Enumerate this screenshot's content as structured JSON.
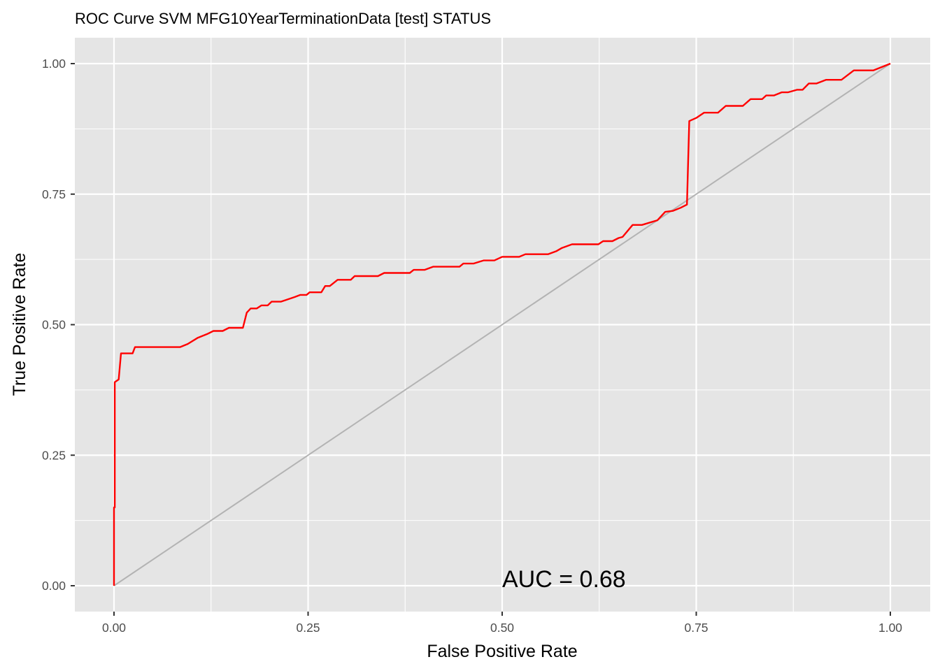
{
  "chart_data": {
    "type": "line",
    "title": "ROC Curve SVM MFG10YearTerminationData [test] STATUS",
    "xlabel": "False Positive Rate",
    "ylabel": "True Positive Rate",
    "xlim": [
      0,
      1
    ],
    "ylim": [
      0,
      1
    ],
    "x_ticks": [
      "0.00",
      "0.25",
      "0.50",
      "0.75",
      "1.00"
    ],
    "y_ticks": [
      "0.00",
      "0.25",
      "0.50",
      "0.75",
      "1.00"
    ],
    "grid": true,
    "legend": "none",
    "annotation": {
      "text": "AUC = 0.68",
      "x": 0.5,
      "y": 0.0
    },
    "colors": {
      "panel": "#e5e5e5",
      "grid": "#ffffff",
      "roc": "#ff0000",
      "diagonal": "#b3b3b3"
    },
    "series": [
      {
        "points": [
          [
            0.0,
            0.0
          ],
          [
            0.0,
            0.15
          ],
          [
            0.001,
            0.15
          ],
          [
            0.001,
            0.39
          ],
          [
            0.006,
            0.395
          ],
          [
            0.009,
            0.445
          ],
          [
            0.024,
            0.445
          ],
          [
            0.027,
            0.457
          ],
          [
            0.085,
            0.457
          ],
          [
            0.095,
            0.463
          ],
          [
            0.108,
            0.475
          ],
          [
            0.12,
            0.482
          ],
          [
            0.128,
            0.488
          ],
          [
            0.14,
            0.488
          ],
          [
            0.148,
            0.494
          ],
          [
            0.166,
            0.494
          ],
          [
            0.171,
            0.523
          ],
          [
            0.176,
            0.531
          ],
          [
            0.184,
            0.531
          ],
          [
            0.19,
            0.537
          ],
          [
            0.198,
            0.537
          ],
          [
            0.203,
            0.544
          ],
          [
            0.215,
            0.544
          ],
          [
            0.233,
            0.553
          ],
          [
            0.24,
            0.557
          ],
          [
            0.248,
            0.557
          ],
          [
            0.252,
            0.562
          ],
          [
            0.267,
            0.562
          ],
          [
            0.272,
            0.574
          ],
          [
            0.278,
            0.574
          ],
          [
            0.288,
            0.586
          ],
          [
            0.305,
            0.586
          ],
          [
            0.31,
            0.593
          ],
          [
            0.34,
            0.593
          ],
          [
            0.348,
            0.599
          ],
          [
            0.381,
            0.599
          ],
          [
            0.386,
            0.605
          ],
          [
            0.4,
            0.605
          ],
          [
            0.411,
            0.611
          ],
          [
            0.445,
            0.611
          ],
          [
            0.45,
            0.617
          ],
          [
            0.463,
            0.617
          ],
          [
            0.476,
            0.623
          ],
          [
            0.49,
            0.623
          ],
          [
            0.5,
            0.63
          ],
          [
            0.522,
            0.63
          ],
          [
            0.53,
            0.635
          ],
          [
            0.559,
            0.635
          ],
          [
            0.57,
            0.641
          ],
          [
            0.577,
            0.647
          ],
          [
            0.59,
            0.654
          ],
          [
            0.624,
            0.654
          ],
          [
            0.63,
            0.66
          ],
          [
            0.642,
            0.66
          ],
          [
            0.65,
            0.666
          ],
          [
            0.655,
            0.668
          ],
          [
            0.668,
            0.691
          ],
          [
            0.68,
            0.691
          ],
          [
            0.7,
            0.7
          ],
          [
            0.71,
            0.716
          ],
          [
            0.72,
            0.718
          ],
          [
            0.73,
            0.724
          ],
          [
            0.738,
            0.73
          ],
          [
            0.741,
            0.89
          ],
          [
            0.75,
            0.896
          ],
          [
            0.76,
            0.906
          ],
          [
            0.778,
            0.906
          ],
          [
            0.788,
            0.919
          ],
          [
            0.81,
            0.919
          ],
          [
            0.82,
            0.932
          ],
          [
            0.835,
            0.932
          ],
          [
            0.84,
            0.939
          ],
          [
            0.85,
            0.939
          ],
          [
            0.86,
            0.945
          ],
          [
            0.868,
            0.945
          ],
          [
            0.88,
            0.95
          ],
          [
            0.887,
            0.95
          ],
          [
            0.895,
            0.962
          ],
          [
            0.905,
            0.962
          ],
          [
            0.917,
            0.969
          ],
          [
            0.937,
            0.969
          ],
          [
            0.953,
            0.987
          ],
          [
            0.978,
            0.987
          ],
          [
            1.0,
            1.0
          ]
        ]
      }
    ],
    "reference_line": [
      [
        0,
        0
      ],
      [
        1,
        1
      ]
    ]
  }
}
